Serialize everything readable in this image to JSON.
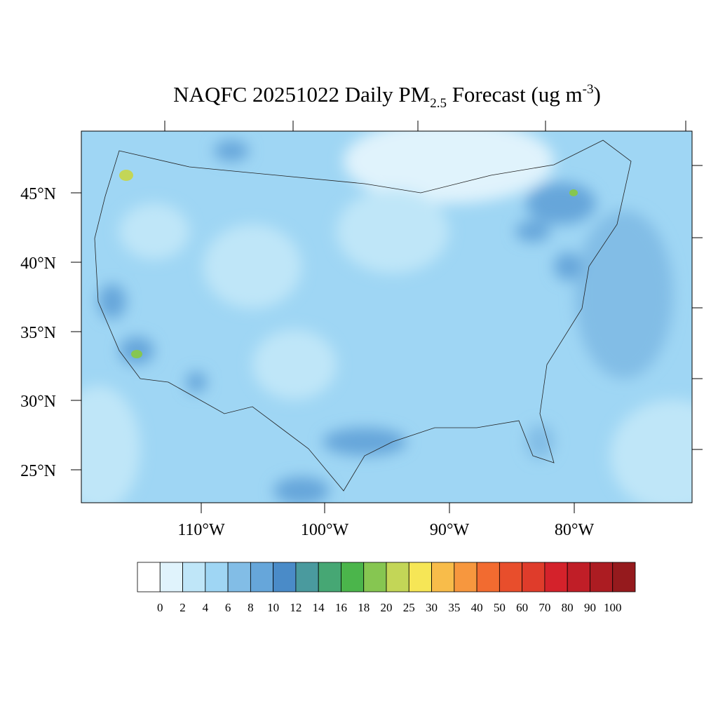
{
  "title": {
    "main": "NAQFC 20251022 Daily PM",
    "subscript": "2.5",
    "rest": " Forecast (ug m",
    "superscript": "-3",
    "end": ")"
  },
  "map": {
    "lat_labels": [
      "45°N",
      "40°N",
      "35°N",
      "30°N",
      "25°N"
    ],
    "lon_labels": [
      "110°W",
      "100°W",
      "90°W",
      "80°W"
    ]
  },
  "colorbar": {
    "levels": [
      0,
      2,
      4,
      6,
      8,
      10,
      12,
      14,
      16,
      18,
      20,
      25,
      30,
      35,
      40,
      50,
      60,
      70,
      80,
      90,
      100
    ],
    "colors": [
      "#ffffff",
      "#e0f3fc",
      "#bfe6f8",
      "#9fd6f4",
      "#82bde6",
      "#66a6da",
      "#4a8bc8",
      "#4a9a9e",
      "#46a774",
      "#4bb54b",
      "#86c651",
      "#c3d657",
      "#f6e656",
      "#f8bc4a",
      "#f7973e",
      "#f26b30",
      "#e84e2c",
      "#df3c2b",
      "#d4222b",
      "#c01e27",
      "#ac1c22",
      "#951a1d"
    ]
  }
}
